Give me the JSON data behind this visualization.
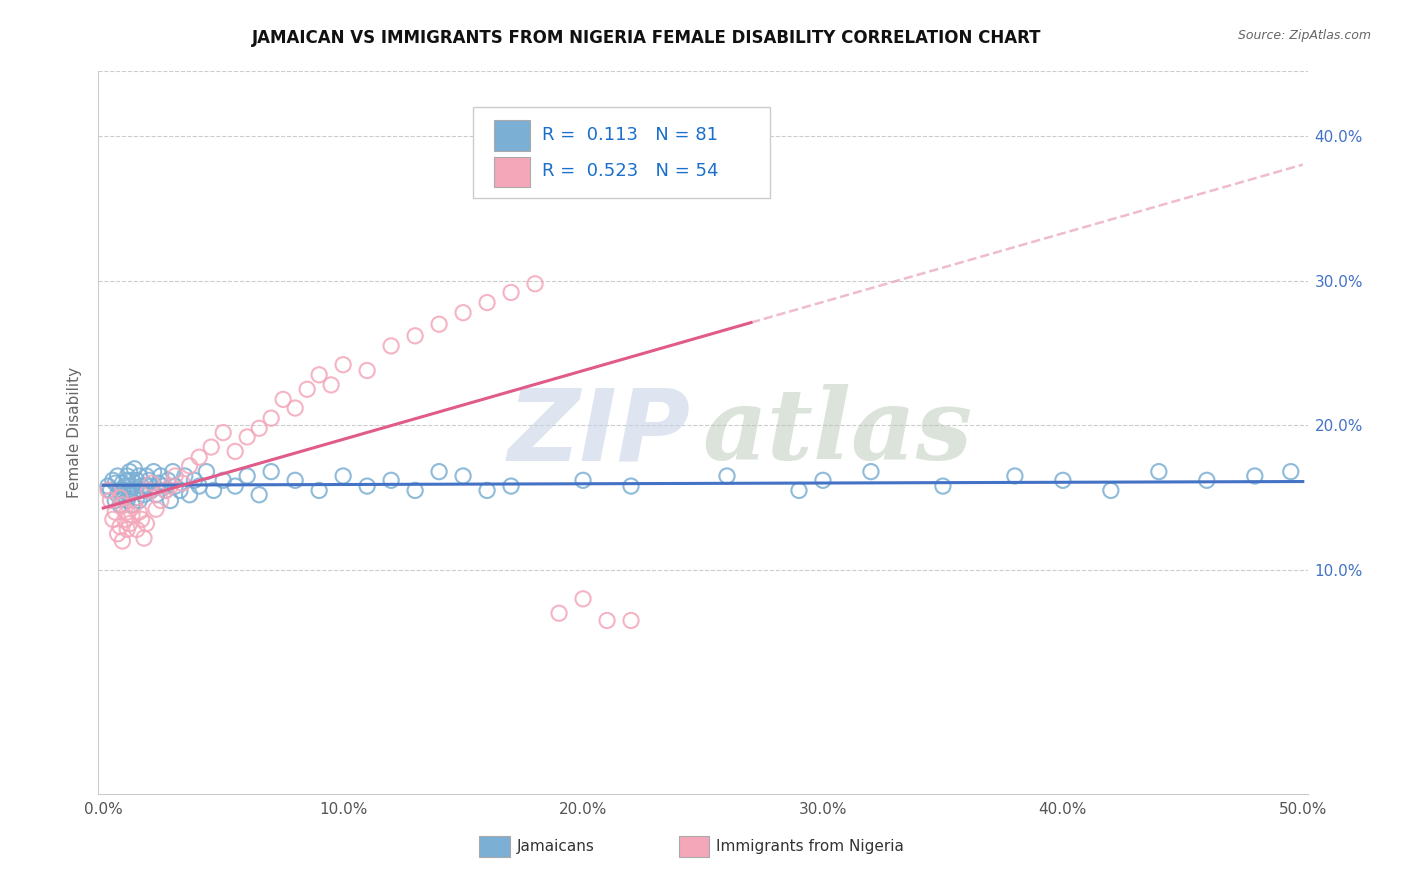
{
  "title": "JAMAICAN VS IMMIGRANTS FROM NIGERIA FEMALE DISABILITY CORRELATION CHART",
  "source": "Source: ZipAtlas.com",
  "ylabel": "Female Disability",
  "xlabel_jamaicans": "Jamaicans",
  "xlabel_nigeria": "Immigrants from Nigeria",
  "xlim": [
    -0.002,
    0.502
  ],
  "ylim": [
    -0.055,
    0.445
  ],
  "yticks": [
    0.1,
    0.2,
    0.3,
    0.4
  ],
  "xticks": [
    0.0,
    0.1,
    0.2,
    0.3,
    0.4,
    0.5
  ],
  "R_jamaican": 0.113,
  "N_jamaican": 81,
  "R_nigeria": 0.523,
  "N_nigeria": 54,
  "color_jamaican": "#7bafd4",
  "color_nigeria": "#f4a7b9",
  "trendline_jamaican": "#4472c4",
  "trendline_nigeria": "#e05b8a",
  "trendline_dash_color": "#e8a0b8",
  "title_fontsize": 12,
  "legend_color": "#1a6fcc",
  "jamaican_scatter_x": [
    0.002,
    0.003,
    0.004,
    0.005,
    0.005,
    0.006,
    0.006,
    0.007,
    0.007,
    0.008,
    0.008,
    0.009,
    0.009,
    0.01,
    0.01,
    0.01,
    0.011,
    0.011,
    0.011,
    0.012,
    0.012,
    0.012,
    0.013,
    0.013,
    0.014,
    0.014,
    0.015,
    0.015,
    0.016,
    0.016,
    0.017,
    0.018,
    0.018,
    0.019,
    0.02,
    0.021,
    0.022,
    0.023,
    0.024,
    0.025,
    0.026,
    0.027,
    0.028,
    0.029,
    0.03,
    0.032,
    0.034,
    0.036,
    0.038,
    0.04,
    0.043,
    0.046,
    0.05,
    0.055,
    0.06,
    0.065,
    0.07,
    0.08,
    0.09,
    0.1,
    0.11,
    0.12,
    0.13,
    0.14,
    0.15,
    0.16,
    0.17,
    0.2,
    0.22,
    0.26,
    0.29,
    0.3,
    0.32,
    0.35,
    0.38,
    0.4,
    0.42,
    0.44,
    0.46,
    0.48,
    0.495
  ],
  "jamaican_scatter_y": [
    0.158,
    0.155,
    0.162,
    0.16,
    0.148,
    0.152,
    0.165,
    0.155,
    0.145,
    0.16,
    0.155,
    0.158,
    0.15,
    0.165,
    0.148,
    0.162,
    0.155,
    0.152,
    0.168,
    0.158,
    0.145,
    0.162,
    0.155,
    0.17,
    0.15,
    0.162,
    0.165,
    0.148,
    0.158,
    0.155,
    0.152,
    0.165,
    0.158,
    0.162,
    0.155,
    0.168,
    0.152,
    0.16,
    0.165,
    0.158,
    0.155,
    0.162,
    0.148,
    0.168,
    0.158,
    0.155,
    0.165,
    0.152,
    0.162,
    0.158,
    0.168,
    0.155,
    0.162,
    0.158,
    0.165,
    0.152,
    0.168,
    0.162,
    0.155,
    0.165,
    0.158,
    0.162,
    0.155,
    0.168,
    0.165,
    0.155,
    0.158,
    0.162,
    0.158,
    0.165,
    0.155,
    0.162,
    0.168,
    0.158,
    0.165,
    0.162,
    0.155,
    0.168,
    0.162,
    0.165,
    0.168
  ],
  "nigeria_scatter_x": [
    0.002,
    0.003,
    0.004,
    0.005,
    0.006,
    0.007,
    0.007,
    0.008,
    0.008,
    0.009,
    0.01,
    0.01,
    0.011,
    0.012,
    0.013,
    0.014,
    0.015,
    0.016,
    0.017,
    0.018,
    0.019,
    0.02,
    0.022,
    0.024,
    0.026,
    0.028,
    0.03,
    0.033,
    0.036,
    0.04,
    0.045,
    0.05,
    0.055,
    0.06,
    0.065,
    0.07,
    0.075,
    0.08,
    0.085,
    0.09,
    0.095,
    0.1,
    0.11,
    0.12,
    0.13,
    0.14,
    0.15,
    0.16,
    0.17,
    0.18,
    0.19,
    0.2,
    0.21,
    0.22
  ],
  "nigeria_scatter_y": [
    0.155,
    0.148,
    0.135,
    0.14,
    0.125,
    0.15,
    0.13,
    0.145,
    0.12,
    0.135,
    0.14,
    0.128,
    0.132,
    0.138,
    0.145,
    0.128,
    0.14,
    0.135,
    0.122,
    0.132,
    0.155,
    0.16,
    0.142,
    0.148,
    0.155,
    0.158,
    0.165,
    0.16,
    0.172,
    0.178,
    0.185,
    0.195,
    0.182,
    0.192,
    0.198,
    0.205,
    0.218,
    0.212,
    0.225,
    0.235,
    0.228,
    0.242,
    0.238,
    0.255,
    0.262,
    0.27,
    0.278,
    0.285,
    0.292,
    0.298,
    0.07,
    0.08,
    0.065,
    0.065
  ]
}
